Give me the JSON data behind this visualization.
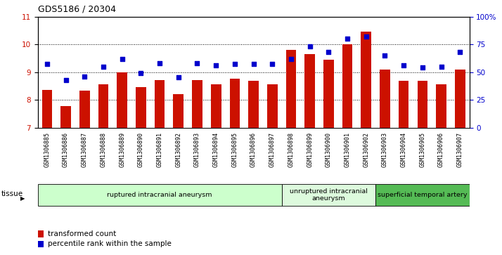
{
  "title": "GDS5186 / 20304",
  "samples": [
    "GSM1306885",
    "GSM1306886",
    "GSM1306887",
    "GSM1306888",
    "GSM1306889",
    "GSM1306890",
    "GSM1306891",
    "GSM1306892",
    "GSM1306893",
    "GSM1306894",
    "GSM1306895",
    "GSM1306896",
    "GSM1306897",
    "GSM1306898",
    "GSM1306899",
    "GSM1306900",
    "GSM1306901",
    "GSM1306902",
    "GSM1306903",
    "GSM1306904",
    "GSM1306905",
    "GSM1306906",
    "GSM1306907"
  ],
  "bar_values": [
    8.35,
    7.78,
    8.33,
    8.55,
    9.0,
    8.45,
    8.72,
    8.2,
    8.72,
    8.55,
    8.75,
    8.68,
    8.55,
    9.8,
    9.65,
    9.45,
    10.0,
    10.45,
    9.1,
    8.68,
    8.68,
    8.55,
    9.1
  ],
  "dot_values_pct": [
    57,
    43,
    46,
    55,
    62,
    49,
    58,
    45,
    58,
    56,
    57,
    57,
    57,
    62,
    73,
    68,
    80,
    82,
    65,
    56,
    54,
    55,
    68
  ],
  "ylim_left": [
    7,
    11
  ],
  "ylim_right": [
    0,
    100
  ],
  "yticks_left": [
    7,
    8,
    9,
    10,
    11
  ],
  "yticks_right": [
    0,
    25,
    50,
    75,
    100
  ],
  "ytick_labels_right": [
    "0",
    "25",
    "50",
    "75",
    "100%"
  ],
  "bar_color": "#cc1100",
  "dot_color": "#0000cc",
  "groups": [
    {
      "label": "ruptured intracranial aneurysm",
      "start": 0,
      "end": 13,
      "color": "#ccffcc"
    },
    {
      "label": "unruptured intracranial\naneurysm",
      "start": 13,
      "end": 18,
      "color": "#ddfadd"
    },
    {
      "label": "superficial temporal artery",
      "start": 18,
      "end": 23,
      "color": "#55bb55"
    }
  ],
  "tissue_label": "tissue",
  "legend_bar_label": "transformed count",
  "legend_dot_label": "percentile rank within the sample",
  "bg_color": "#d8d8d8",
  "plot_bg": "#ffffff"
}
